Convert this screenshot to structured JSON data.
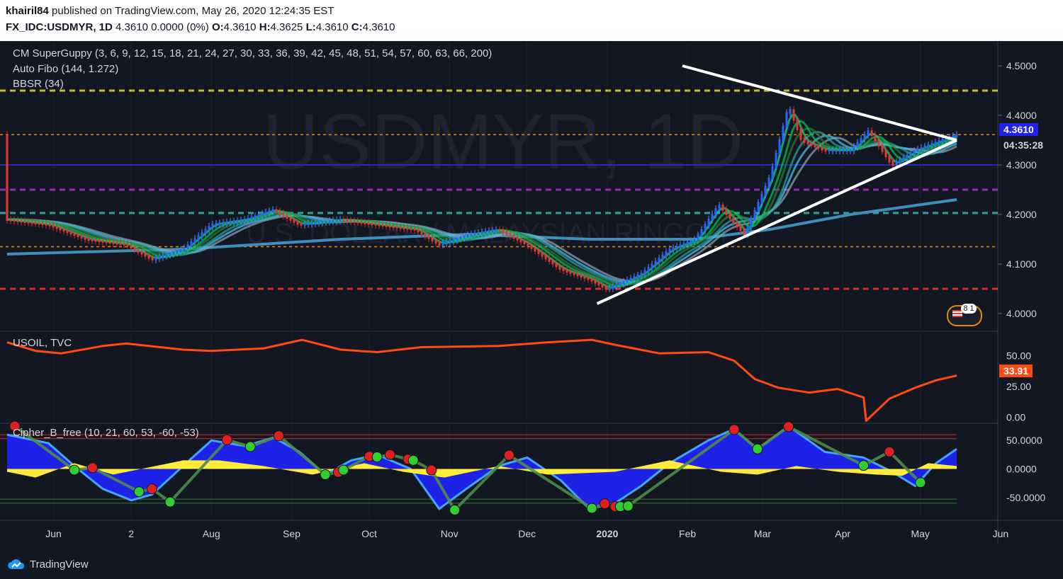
{
  "header": {
    "user": "khairil84",
    "published": "published on TradingView.com, May 26, 2020 12:24:35 EST",
    "symbol": "FX_IDC:USDMYR, 1D",
    "price_line": "4.3610 0.0000 (0%)",
    "ohlc": [
      {
        "k": "O:",
        "v": "4.3610"
      },
      {
        "k": "H:",
        "v": "4.3625"
      },
      {
        "k": "L:",
        "v": "4.3610"
      },
      {
        "k": "C:",
        "v": "4.3610"
      }
    ]
  },
  "indicators": {
    "superguppy": "CM SuperGuppy (3, 6, 9, 12, 15, 18, 21, 24, 27, 30, 33, 36, 39, 42, 45, 48, 51, 54, 57, 60, 63, 66, 200)",
    "autofibo": "Auto Fibo (144, 1.272)",
    "bbsr": "BBSR (34)"
  },
  "watermark": {
    "main": "USDMYR, 1D",
    "sub": "U.S. DOLLAR / MALAYSIAN RINGGIT"
  },
  "price_tag": {
    "value": "4.3610",
    "countdown": "04:35:28"
  },
  "oil_tag": "33.91",
  "panes": {
    "oil_title": "USOIL, TVC",
    "cipher_title": "Cipher_B_free (10, 21, 60, 53, -60, -53)"
  },
  "badge": "8 1",
  "footer": {
    "brand": "TradingView"
  },
  "colors": {
    "background": "#131722",
    "oil": "#ff4a14",
    "wave_blue": "#1e22e6",
    "money_flow": "#ffeb3b",
    "fib_yellow": "#c8b92c",
    "fib_purple": "#9c27b0",
    "fib_teal": "#26a69a",
    "fib_red": "#d32f2f",
    "fib_orange": "#e68a00",
    "dot_green": "#33cc33",
    "dot_red": "#e02020"
  },
  "chart_data": [
    {
      "type": "candlestick",
      "symbol": "FX_IDC:USDMYR",
      "interval": "1D",
      "x_ticks": [
        "Jun",
        "2",
        "Aug",
        "Sep",
        "Oct",
        "Nov",
        "Dec",
        "2020",
        "Feb",
        "Mar",
        "Apr",
        "May",
        "Jun"
      ],
      "y_ticks": [
        "4.5000",
        "4.4000",
        "4.3000",
        "4.2000",
        "4.1000",
        "4.0000"
      ],
      "ylim": [
        3.97,
        4.55
      ],
      "close_path": {
        "x": [
          "2019-05-25",
          "2019-06-10",
          "2019-06-25",
          "2019-07-10",
          "2019-07-20",
          "2019-08-01",
          "2019-08-12",
          "2019-08-25",
          "2019-09-05",
          "2019-09-15",
          "2019-10-01",
          "2019-10-15",
          "2019-10-30",
          "2019-11-08",
          "2019-11-20",
          "2019-12-01",
          "2019-12-12",
          "2019-12-25",
          "2020-01-05",
          "2020-01-12",
          "2020-01-25",
          "2020-02-05",
          "2020-02-15",
          "2020-02-24",
          "2020-03-05",
          "2020-03-15",
          "2020-03-22",
          "2020-03-27",
          "2020-04-05",
          "2020-04-15",
          "2020-04-22",
          "2020-05-01",
          "2020-05-10",
          "2020-05-20",
          "2020-05-26"
        ],
        "y": [
          4.19,
          4.18,
          4.15,
          4.14,
          4.11,
          4.13,
          4.18,
          4.19,
          4.21,
          4.18,
          4.19,
          4.18,
          4.17,
          4.14,
          4.16,
          4.17,
          4.14,
          4.09,
          4.07,
          4.05,
          4.08,
          4.13,
          4.15,
          4.22,
          4.16,
          4.28,
          4.42,
          4.35,
          4.33,
          4.33,
          4.37,
          4.3,
          4.33,
          4.35,
          4.361
        ]
      },
      "fib_levels": [
        {
          "value": 4.45,
          "color": "yellow"
        },
        {
          "value": 4.361,
          "color": "orange"
        },
        {
          "value": 4.3,
          "color": "blue"
        },
        {
          "value": 4.25,
          "color": "purple"
        },
        {
          "value": 4.203,
          "color": "teal"
        },
        {
          "value": 4.135,
          "color": "orange"
        },
        {
          "value": 4.05,
          "color": "red"
        }
      ],
      "ma200": {
        "x": [
          "2019-05-25",
          "2019-08-01",
          "2019-10-01",
          "2019-11-20",
          "2020-01-05",
          "2020-02-15",
          "2020-03-15",
          "2020-04-15",
          "2020-05-26"
        ],
        "y": [
          4.12,
          4.13,
          4.15,
          4.16,
          4.15,
          4.15,
          4.17,
          4.2,
          4.23
        ]
      },
      "trendlines": [
        {
          "name": "resistance",
          "x": [
            "2020-02-10",
            "2020-05-26"
          ],
          "y": [
            4.5,
            4.35
          ]
        },
        {
          "name": "support",
          "x": [
            "2020-01-08",
            "2020-05-26"
          ],
          "y": [
            4.02,
            4.35
          ]
        }
      ],
      "last": 4.361
    },
    {
      "type": "line",
      "symbol": "TVC:USOIL",
      "y_ticks": [
        "50.00",
        "25.00",
        "0.00"
      ],
      "ylim": [
        -5,
        70
      ],
      "last": 33.91,
      "series": [
        {
          "x": [
            "2019-05-25",
            "2019-06-05",
            "2019-06-15",
            "2019-07-01",
            "2019-07-10",
            "2019-08-01",
            "2019-08-12",
            "2019-09-01",
            "2019-09-16",
            "2019-10-01",
            "2019-10-15",
            "2019-11-01",
            "2019-12-01",
            "2019-12-20",
            "2020-01-06",
            "2020-01-15",
            "2020-02-01",
            "2020-02-20",
            "2020-03-01",
            "2020-03-09",
            "2020-03-18",
            "2020-03-30",
            "2020-04-10",
            "2020-04-20",
            "2020-04-21",
            "2020-04-30",
            "2020-05-10",
            "2020-05-18",
            "2020-05-26"
          ],
          "y": [
            61,
            54,
            52,
            58,
            60,
            55,
            54,
            56,
            63,
            55,
            53,
            57,
            58,
            61,
            63,
            59,
            52,
            53,
            46,
            31,
            24,
            20,
            23,
            16,
            -3,
            15,
            24,
            30,
            33.91
          ]
        }
      ]
    },
    {
      "type": "area",
      "name": "Cipher_B_free",
      "y_ticks": [
        "50.0000",
        "0.0000",
        "-50.0000"
      ],
      "ylim": [
        -90,
        80
      ],
      "levels": [
        60,
        53,
        -53,
        -60
      ],
      "wave": {
        "x": [
          "2019-05-25",
          "2019-06-10",
          "2019-06-20",
          "2019-07-01",
          "2019-07-12",
          "2019-07-20",
          "2019-08-01",
          "2019-08-12",
          "2019-08-25",
          "2019-09-05",
          "2019-09-15",
          "2019-09-25",
          "2019-10-05",
          "2019-10-15",
          "2019-10-28",
          "2019-11-08",
          "2019-11-20",
          "2019-12-01",
          "2019-12-12",
          "2019-12-25",
          "2020-01-05",
          "2020-01-15",
          "2020-01-25",
          "2020-02-05",
          "2020-02-20",
          "2020-03-01",
          "2020-03-10",
          "2020-03-22",
          "2020-04-05",
          "2020-04-20",
          "2020-05-01",
          "2020-05-10",
          "2020-05-18",
          "2020-05-26"
        ],
        "y": [
          60,
          45,
          5,
          -35,
          -55,
          -45,
          5,
          50,
          40,
          55,
          30,
          -10,
          15,
          25,
          0,
          -70,
          -30,
          5,
          20,
          -20,
          -70,
          -60,
          -30,
          10,
          50,
          70,
          35,
          75,
          30,
          20,
          -5,
          -30,
          10,
          35
        ]
      },
      "money_flow": {
        "x": [
          "2019-05-25",
          "2019-06-05",
          "2019-06-20",
          "2019-07-05",
          "2019-08-01",
          "2019-08-15",
          "2019-09-01",
          "2019-09-20",
          "2019-10-10",
          "2019-10-25",
          "2019-11-10",
          "2019-12-01",
          "2019-12-20",
          "2020-01-15",
          "2020-02-05",
          "2020-02-25",
          "2020-03-10",
          "2020-03-25",
          "2020-04-10",
          "2020-04-25",
          "2020-05-05",
          "2020-05-15",
          "2020-05-26"
        ],
        "y": [
          -5,
          -15,
          10,
          -10,
          15,
          15,
          5,
          -10,
          10,
          -5,
          -15,
          5,
          -10,
          -5,
          15,
          -5,
          -10,
          5,
          -5,
          -10,
          -12,
          10,
          5
        ]
      },
      "dots": [
        {
          "x": "2019-05-28",
          "y": 75,
          "color": "red"
        },
        {
          "x": "2019-06-20",
          "y": -2,
          "color": "green"
        },
        {
          "x": "2019-06-27",
          "y": 2,
          "color": "red"
        },
        {
          "x": "2019-07-15",
          "y": -40,
          "color": "green"
        },
        {
          "x": "2019-07-20",
          "y": -35,
          "color": "red"
        },
        {
          "x": "2019-07-27",
          "y": -58,
          "color": "green"
        },
        {
          "x": "2019-08-18",
          "y": 51,
          "color": "red"
        },
        {
          "x": "2019-08-27",
          "y": 39,
          "color": "green"
        },
        {
          "x": "2019-09-07",
          "y": 58,
          "color": "red"
        },
        {
          "x": "2019-09-25",
          "y": -10,
          "color": "green"
        },
        {
          "x": "2019-09-30",
          "y": -6,
          "color": "red"
        },
        {
          "x": "2019-10-02",
          "y": -2,
          "color": "green"
        },
        {
          "x": "2019-10-12",
          "y": 22,
          "color": "red"
        },
        {
          "x": "2019-10-15",
          "y": 21,
          "color": "green"
        },
        {
          "x": "2019-10-20",
          "y": 25,
          "color": "red"
        },
        {
          "x": "2019-10-27",
          "y": 17,
          "color": "red"
        },
        {
          "x": "2019-10-29",
          "y": 15,
          "color": "green"
        },
        {
          "x": "2019-11-05",
          "y": -2,
          "color": "red"
        },
        {
          "x": "2019-11-14",
          "y": -72,
          "color": "green"
        },
        {
          "x": "2019-12-05",
          "y": 24,
          "color": "red"
        },
        {
          "x": "2020-01-06",
          "y": -69,
          "color": "green"
        },
        {
          "x": "2020-01-11",
          "y": -61,
          "color": "red"
        },
        {
          "x": "2020-01-15",
          "y": -66,
          "color": "red"
        },
        {
          "x": "2020-01-17",
          "y": -66,
          "color": "green"
        },
        {
          "x": "2020-01-20",
          "y": -65,
          "color": "green"
        },
        {
          "x": "2020-03-01",
          "y": 69,
          "color": "red"
        },
        {
          "x": "2020-03-10",
          "y": 35,
          "color": "green"
        },
        {
          "x": "2020-03-22",
          "y": 74,
          "color": "red"
        },
        {
          "x": "2020-04-20",
          "y": 6,
          "color": "green"
        },
        {
          "x": "2020-04-30",
          "y": 30,
          "color": "red"
        },
        {
          "x": "2020-05-12",
          "y": -24,
          "color": "green"
        }
      ]
    }
  ]
}
